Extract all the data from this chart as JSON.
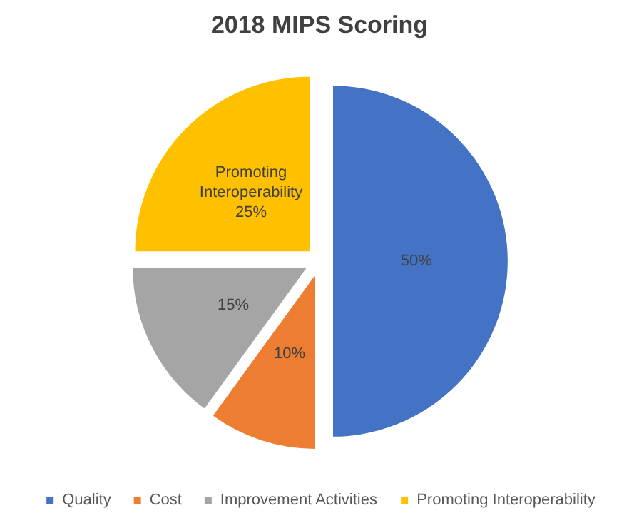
{
  "chart_data": {
    "type": "pie",
    "title": "2018 MIPS Scoring",
    "categories": [
      "Quality",
      "Cost",
      "Improvement Activities",
      "Promoting Interoperability"
    ],
    "values": [
      50,
      10,
      15,
      25
    ],
    "colors": [
      "#4472c4",
      "#ed7d31",
      "#a5a5a5",
      "#ffc000"
    ],
    "value_labels": [
      "50%",
      "10%",
      "15%",
      "Promoting Interoperability 25%"
    ],
    "legend": "bottom"
  }
}
